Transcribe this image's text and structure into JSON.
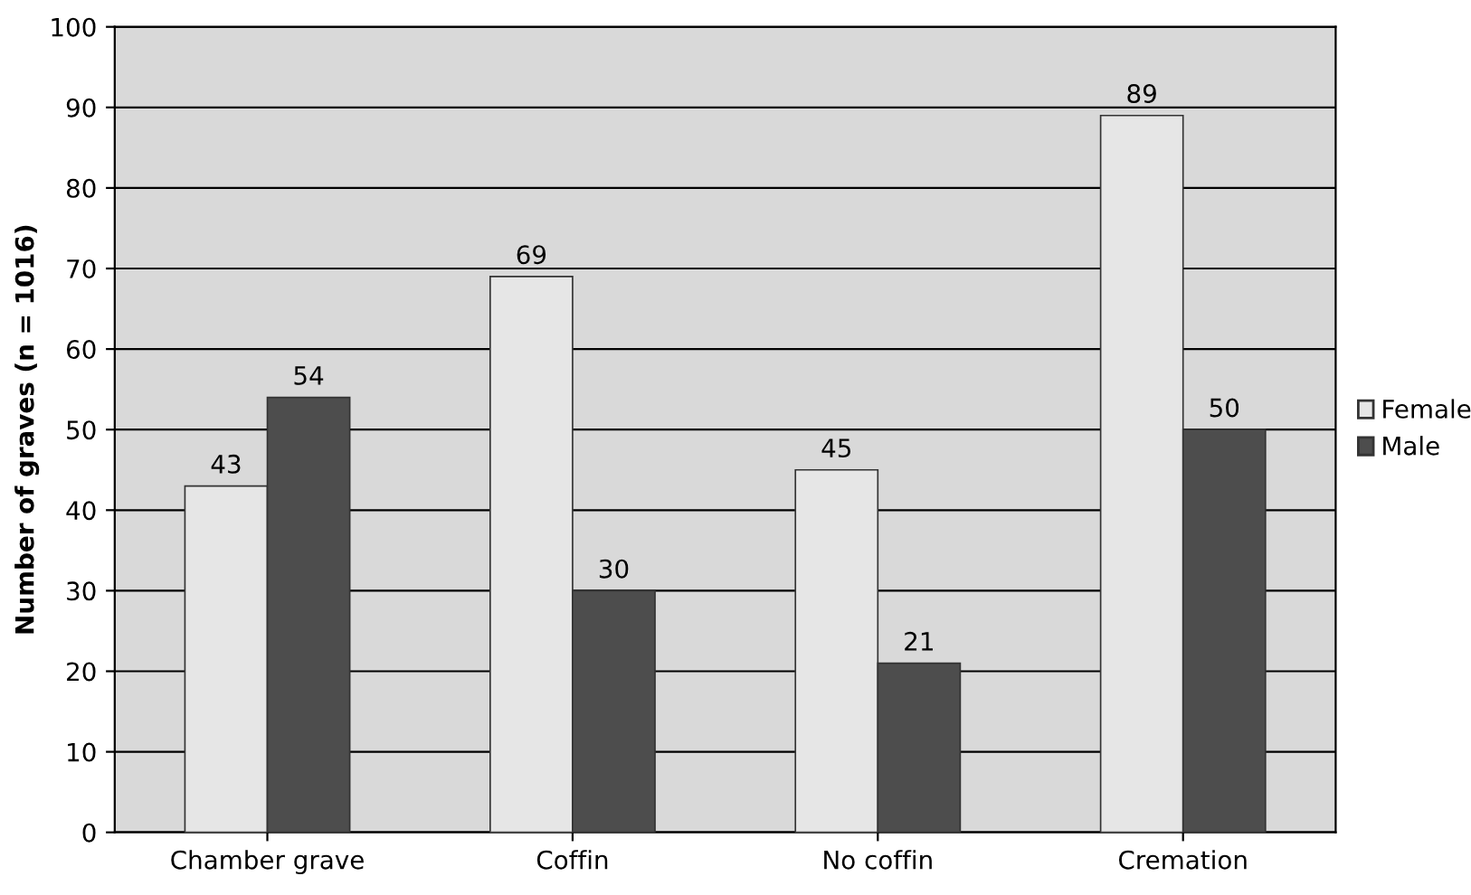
{
  "chart_data": {
    "type": "bar",
    "ylabel": "Number of graves (n = 1016)",
    "categories": [
      "Chamber grave",
      "Coffin",
      "No coffin",
      "Cremation"
    ],
    "series": [
      {
        "name": "Female",
        "color": "#e6e6e6",
        "values": [
          43,
          69,
          45,
          89
        ]
      },
      {
        "name": "Male",
        "color": "#4d4d4d",
        "values": [
          54,
          30,
          21,
          50
        ]
      }
    ],
    "ylim": [
      0,
      100
    ],
    "yticks": [
      0,
      10,
      20,
      30,
      40,
      50,
      60,
      70,
      80,
      90,
      100
    ],
    "grid": "y",
    "legend": "right",
    "data_labels": true
  }
}
